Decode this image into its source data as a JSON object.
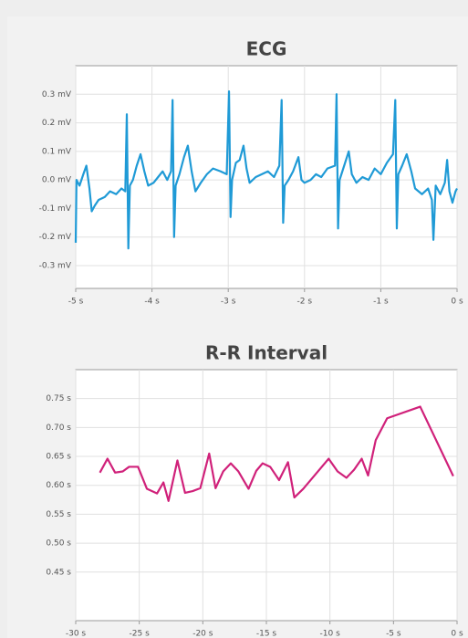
{
  "chart_data": [
    {
      "type": "line",
      "title": "ECG",
      "color": "#1f9ad6",
      "grid": true,
      "x": [
        -5.0,
        -4.99,
        -4.95,
        -4.9,
        -4.86,
        -4.82,
        -4.79,
        -4.75,
        -4.7,
        -4.62,
        -4.55,
        -4.47,
        -4.4,
        -4.35,
        -4.33,
        -4.31,
        -4.29,
        -4.25,
        -4.2,
        -4.15,
        -4.1,
        -4.05,
        -3.98,
        -3.92,
        -3.86,
        -3.8,
        -3.75,
        -3.73,
        -3.71,
        -3.69,
        -3.64,
        -3.58,
        -3.53,
        -3.48,
        -3.43,
        -3.36,
        -3.28,
        -3.2,
        -3.1,
        -3.02,
        -2.99,
        -2.97,
        -2.95,
        -2.9,
        -2.85,
        -2.8,
        -2.76,
        -2.72,
        -2.64,
        -2.56,
        -2.48,
        -2.4,
        -2.33,
        -2.3,
        -2.28,
        -2.26,
        -2.21,
        -2.15,
        -2.08,
        -2.04,
        -2.0,
        -1.92,
        -1.85,
        -1.78,
        -1.7,
        -1.6,
        -1.58,
        -1.56,
        -1.54,
        -1.48,
        -1.42,
        -1.38,
        -1.32,
        -1.24,
        -1.16,
        -1.08,
        -1.0,
        -0.92,
        -0.84,
        -0.81,
        -0.79,
        -0.77,
        -0.72,
        -0.66,
        -0.6,
        -0.55,
        -0.46,
        -0.38,
        -0.33,
        -0.31,
        -0.28,
        -0.22,
        -0.16,
        -0.13,
        -0.1,
        -0.06,
        -0.02,
        0.0
      ],
      "values": [
        -0.22,
        0.0,
        -0.02,
        0.02,
        0.05,
        -0.03,
        -0.11,
        -0.09,
        -0.07,
        -0.06,
        -0.04,
        -0.05,
        -0.03,
        -0.04,
        0.23,
        -0.24,
        -0.02,
        0.0,
        0.05,
        0.09,
        0.03,
        -0.02,
        -0.01,
        0.01,
        0.03,
        0.0,
        0.03,
        0.28,
        -0.2,
        -0.02,
        0.02,
        0.08,
        0.12,
        0.03,
        -0.04,
        -0.01,
        0.02,
        0.04,
        0.03,
        0.02,
        0.31,
        -0.13,
        0.0,
        0.06,
        0.07,
        0.12,
        0.04,
        -0.01,
        0.01,
        0.02,
        0.03,
        0.01,
        0.05,
        0.28,
        -0.15,
        -0.02,
        0.0,
        0.03,
        0.08,
        0.0,
        -0.01,
        0.0,
        0.02,
        0.01,
        0.04,
        0.05,
        0.3,
        -0.17,
        0.0,
        0.05,
        0.1,
        0.02,
        -0.01,
        0.01,
        0.0,
        0.04,
        0.02,
        0.06,
        0.09,
        0.28,
        -0.17,
        0.02,
        0.05,
        0.09,
        0.03,
        -0.03,
        -0.05,
        -0.03,
        -0.07,
        -0.21,
        -0.02,
        -0.05,
        -0.01,
        0.07,
        -0.04,
        -0.08,
        -0.04,
        -0.03
      ],
      "xlim": [
        -5,
        0
      ],
      "xticks": [
        {
          "value": -5,
          "label": "-5 s"
        },
        {
          "value": -4,
          "label": "-4 s"
        },
        {
          "value": -3,
          "label": "-3 s"
        },
        {
          "value": -2,
          "label": "-2 s"
        },
        {
          "value": -1,
          "label": "-1 s"
        },
        {
          "value": 0,
          "label": "0 s"
        }
      ],
      "ylim": [
        -0.38,
        0.4
      ],
      "yticks": [
        {
          "value": 0.3,
          "label": "0.3 mV"
        },
        {
          "value": 0.2,
          "label": "0.2 mV"
        },
        {
          "value": 0.1,
          "label": "0.1 mV"
        },
        {
          "value": 0.0,
          "label": "0.0 mV"
        },
        {
          "value": -0.1,
          "label": "-0.1 mV"
        },
        {
          "value": -0.2,
          "label": "-0.2 mV"
        },
        {
          "value": -0.3,
          "label": "-0.3 mV"
        }
      ]
    },
    {
      "type": "line",
      "title": "R-R Interval",
      "color": "#d0217a",
      "grid": true,
      "x": [
        -28.1,
        -27.5,
        -26.9,
        -26.3,
        -25.8,
        -25.1,
        -24.4,
        -23.6,
        -23.1,
        -22.7,
        -22.0,
        -21.4,
        -20.8,
        -20.2,
        -19.5,
        -19.0,
        -18.4,
        -17.8,
        -17.2,
        -16.4,
        -15.8,
        -15.3,
        -14.7,
        -14.0,
        -13.3,
        -12.8,
        -12.1,
        -10.1,
        -9.4,
        -8.7,
        -8.1,
        -7.5,
        -7.0,
        -6.4,
        -5.5,
        -2.9,
        -0.3
      ],
      "values": [
        0.622,
        0.646,
        0.622,
        0.624,
        0.632,
        0.632,
        0.594,
        0.586,
        0.605,
        0.573,
        0.643,
        0.587,
        0.59,
        0.595,
        0.655,
        0.595,
        0.624,
        0.638,
        0.624,
        0.594,
        0.625,
        0.638,
        0.632,
        0.609,
        0.64,
        0.579,
        0.594,
        0.646,
        0.624,
        0.613,
        0.627,
        0.646,
        0.617,
        0.678,
        0.716,
        0.736,
        0.616
      ],
      "xlim": [
        -30,
        0
      ],
      "xticks": [
        {
          "value": -30,
          "label": "-30 s"
        },
        {
          "value": -25,
          "label": "-25 s"
        },
        {
          "value": -20,
          "label": "-20 s"
        },
        {
          "value": -15,
          "label": "-15 s"
        },
        {
          "value": -10,
          "label": "-10 s"
        },
        {
          "value": -5,
          "label": "-5 s"
        },
        {
          "value": 0,
          "label": "0 s"
        }
      ],
      "ylim": [
        0.366,
        0.8
      ],
      "yticks": [
        {
          "value": 0.75,
          "label": "0.75 s"
        },
        {
          "value": 0.7,
          "label": "0.70 s"
        },
        {
          "value": 0.65,
          "label": "0.65 s"
        },
        {
          "value": 0.6,
          "label": "0.60 s"
        },
        {
          "value": 0.55,
          "label": "0.55 s"
        },
        {
          "value": 0.5,
          "label": "0.50 s"
        },
        {
          "value": 0.45,
          "label": "0.45 s"
        }
      ]
    }
  ]
}
